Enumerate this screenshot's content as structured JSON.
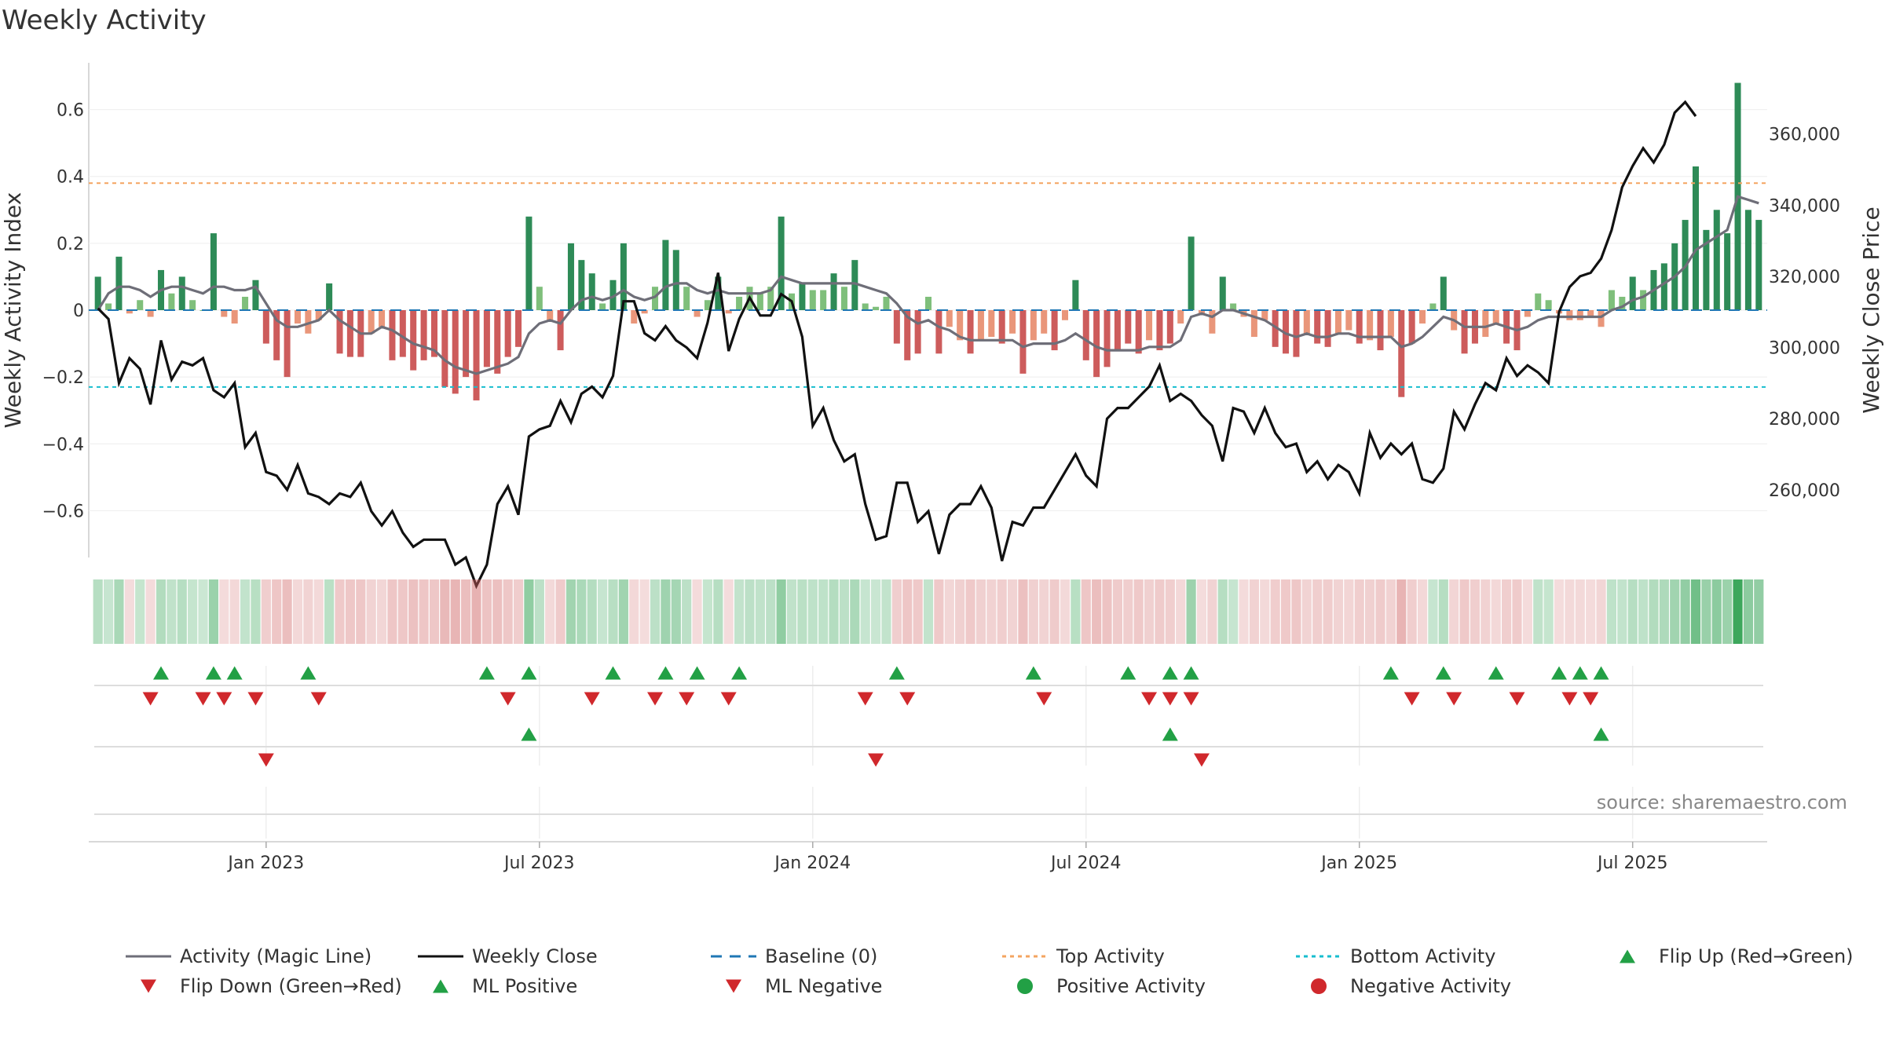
{
  "title": "Weekly Activity",
  "source": "source: sharemaestro.com",
  "colors": {
    "strong_green": "#2e8b57",
    "light_green": "#7fbf7b",
    "strong_red": "#cd5c5c",
    "light_red": "#e9967a",
    "magic_line": "#6e6e78",
    "close_line": "#111111",
    "baseline": "#1f77b4",
    "top_line": "#f4a460",
    "bottom_line": "#17becf",
    "marker_green": "#22a045",
    "marker_red": "#d0282c"
  },
  "chart_data": {
    "type": "bar+line",
    "left_axis": {
      "label": "Weekly Activity Index",
      "ylim": [
        -0.74,
        0.74
      ],
      "ticks": [
        0.6,
        0.4,
        0.2,
        0,
        -0.2,
        -0.4,
        -0.6
      ],
      "tick_labels": [
        "0.6",
        "0.4",
        "0.2",
        "0",
        "−0.2",
        "−0.4",
        "−0.6"
      ]
    },
    "right_axis": {
      "label": "Weekly Close Price",
      "ylim": [
        241000,
        380000
      ],
      "ticks": [
        260000,
        280000,
        300000,
        320000,
        340000,
        360000
      ],
      "tick_labels": [
        "260,000",
        "280,000",
        "300,000",
        "320,000",
        "340,000",
        "360,000"
      ]
    },
    "x_ticks": [
      {
        "label": "Jan 2023",
        "week": 16
      },
      {
        "label": "Jul 2023",
        "week": 42
      },
      {
        "label": "Jan 2024",
        "week": 68
      },
      {
        "label": "Jul 2024",
        "week": 94
      },
      {
        "label": "Jan 2025",
        "week": 120
      },
      {
        "label": "Jul 2025",
        "week": 146
      }
    ],
    "top_activity": 0.38,
    "bottom_activity": -0.23,
    "activity": [
      0.1,
      0.02,
      0.16,
      -0.01,
      0.03,
      -0.02,
      0.12,
      0.05,
      0.1,
      0.03,
      0.0,
      0.23,
      -0.02,
      -0.04,
      0.04,
      0.09,
      -0.1,
      -0.15,
      -0.2,
      -0.04,
      -0.07,
      -0.03,
      0.08,
      -0.13,
      -0.14,
      -0.14,
      -0.07,
      -0.05,
      -0.15,
      -0.14,
      -0.18,
      -0.15,
      -0.14,
      -0.23,
      -0.25,
      -0.2,
      -0.27,
      -0.17,
      -0.19,
      -0.14,
      -0.11,
      0.28,
      0.07,
      -0.03,
      -0.12,
      0.2,
      0.15,
      0.11,
      0.02,
      0.09,
      0.2,
      -0.04,
      -0.01,
      0.07,
      0.21,
      0.18,
      0.07,
      -0.02,
      0.03,
      0.1,
      -0.01,
      0.04,
      0.07,
      0.05,
      0.07,
      0.28,
      0.05,
      0.08,
      0.06,
      0.06,
      0.11,
      0.07,
      0.15,
      0.02,
      0.01,
      0.04,
      -0.1,
      -0.15,
      -0.13,
      0.04,
      -0.13,
      -0.05,
      -0.09,
      -0.13,
      -0.09,
      -0.08,
      -0.1,
      -0.07,
      -0.19,
      -0.09,
      -0.07,
      -0.12,
      -0.03,
      0.09,
      -0.15,
      -0.2,
      -0.17,
      -0.12,
      -0.1,
      -0.13,
      -0.09,
      -0.12,
      -0.1,
      -0.04,
      0.22,
      -0.01,
      -0.07,
      0.1,
      0.02,
      -0.02,
      -0.08,
      -0.03,
      -0.11,
      -0.13,
      -0.14,
      -0.07,
      -0.1,
      -0.11,
      -0.07,
      -0.06,
      -0.1,
      -0.09,
      -0.12,
      -0.08,
      -0.26,
      -0.1,
      -0.04,
      0.02,
      0.1,
      -0.06,
      -0.13,
      -0.1,
      -0.08,
      -0.04,
      -0.1,
      -0.12,
      -0.02,
      0.05,
      0.03,
      -0.01,
      -0.03,
      -0.03,
      -0.02,
      -0.05,
      0.06,
      0.04,
      0.1,
      0.06,
      0.12,
      0.14,
      0.2,
      0.27,
      0.43,
      0.24,
      0.3,
      0.23,
      0.68,
      0.3,
      0.27
    ],
    "magic_line": [
      0.0,
      0.05,
      0.07,
      0.07,
      0.06,
      0.04,
      0.06,
      0.07,
      0.07,
      0.06,
      0.05,
      0.07,
      0.07,
      0.06,
      0.06,
      0.07,
      0.02,
      -0.03,
      -0.05,
      -0.05,
      -0.04,
      -0.03,
      0.0,
      -0.03,
      -0.05,
      -0.07,
      -0.07,
      -0.05,
      -0.06,
      -0.08,
      -0.1,
      -0.11,
      -0.12,
      -0.15,
      -0.17,
      -0.18,
      -0.19,
      -0.18,
      -0.17,
      -0.16,
      -0.14,
      -0.07,
      -0.04,
      -0.03,
      -0.04,
      0.0,
      0.03,
      0.04,
      0.03,
      0.04,
      0.06,
      0.04,
      0.03,
      0.04,
      0.07,
      0.08,
      0.08,
      0.06,
      0.05,
      0.06,
      0.05,
      0.05,
      0.05,
      0.05,
      0.06,
      0.1,
      0.09,
      0.08,
      0.08,
      0.08,
      0.08,
      0.08,
      0.08,
      0.07,
      0.06,
      0.05,
      0.02,
      -0.02,
      -0.04,
      -0.03,
      -0.05,
      -0.06,
      -0.08,
      -0.09,
      -0.09,
      -0.09,
      -0.09,
      -0.09,
      -0.11,
      -0.1,
      -0.1,
      -0.1,
      -0.09,
      -0.07,
      -0.09,
      -0.11,
      -0.12,
      -0.12,
      -0.12,
      -0.12,
      -0.11,
      -0.11,
      -0.11,
      -0.09,
      -0.02,
      -0.01,
      -0.02,
      0.0,
      0.0,
      -0.01,
      -0.02,
      -0.03,
      -0.05,
      -0.07,
      -0.08,
      -0.07,
      -0.08,
      -0.08,
      -0.07,
      -0.07,
      -0.08,
      -0.08,
      -0.08,
      -0.08,
      -0.11,
      -0.1,
      -0.08,
      -0.05,
      -0.02,
      -0.03,
      -0.05,
      -0.05,
      -0.05,
      -0.04,
      -0.05,
      -0.06,
      -0.05,
      -0.03,
      -0.02,
      -0.02,
      -0.02,
      -0.02,
      -0.02,
      -0.02,
      0.0,
      0.01,
      0.03,
      0.04,
      0.06,
      0.08,
      0.1,
      0.13,
      0.18,
      0.2,
      0.22,
      0.24,
      0.34,
      0.33,
      0.32
    ],
    "weekly_close": [
      311000,
      308000,
      290000,
      297000,
      294000,
      284000,
      302000,
      291000,
      296000,
      295000,
      297000,
      288000,
      286000,
      290000,
      272000,
      276000,
      265000,
      264000,
      260000,
      267000,
      259000,
      258000,
      256000,
      259000,
      258000,
      262000,
      254000,
      250000,
      254000,
      248000,
      244000,
      246000,
      246000,
      246000,
      239000,
      241000,
      233000,
      239000,
      256000,
      261000,
      253000,
      275000,
      277000,
      278000,
      285000,
      279000,
      287000,
      289000,
      286000,
      292000,
      313000,
      313000,
      304000,
      302000,
      306000,
      302000,
      300000,
      297000,
      307000,
      321000,
      299000,
      308000,
      314000,
      309000,
      309000,
      315000,
      313000,
      303000,
      278000,
      283000,
      274000,
      268000,
      270000,
      256000,
      246000,
      247000,
      262000,
      262000,
      251000,
      254000,
      242000,
      253000,
      256000,
      256000,
      261000,
      255000,
      240000,
      251000,
      250000,
      255000,
      255000,
      260000,
      265000,
      270000,
      264000,
      261000,
      280000,
      283000,
      283000,
      286000,
      289000,
      295000,
      285000,
      287000,
      285000,
      281000,
      278000,
      268000,
      283000,
      282000,
      276000,
      283000,
      276000,
      272000,
      273000,
      265000,
      268000,
      263000,
      267000,
      265000,
      259000,
      276000,
      269000,
      273000,
      270000,
      273000,
      263000,
      262000,
      266000,
      282000,
      277000,
      284000,
      290000,
      288000,
      297000,
      292000,
      295000,
      293000,
      290000,
      310000,
      317000,
      320000,
      321000,
      325000,
      333000,
      345000,
      351000,
      356000,
      352000,
      357000,
      366000,
      369000,
      365000
    ],
    "flip_up_weeks": [
      6,
      11,
      13,
      20,
      37,
      41,
      49,
      54,
      57,
      61,
      76,
      89,
      98,
      102,
      104,
      123,
      128,
      133,
      139,
      141,
      143
    ],
    "flip_down_weeks": [
      5,
      10,
      12,
      15,
      21,
      39,
      47,
      53,
      56,
      60,
      73,
      77,
      90,
      100,
      102,
      104,
      125,
      129,
      135,
      140,
      142
    ],
    "ml_positive_weeks": [
      41,
      102,
      143
    ],
    "ml_negative_weeks": [
      16,
      74,
      105
    ],
    "legend": [
      "Activity (Magic Line)",
      "Weekly Close",
      "Baseline (0)",
      "Top Activity",
      "Bottom Activity",
      "Flip Up (Red→Green)",
      "Flip Down (Green→Red)",
      "ML Positive",
      "ML Negative",
      "Positive Activity",
      "Negative Activity"
    ]
  }
}
